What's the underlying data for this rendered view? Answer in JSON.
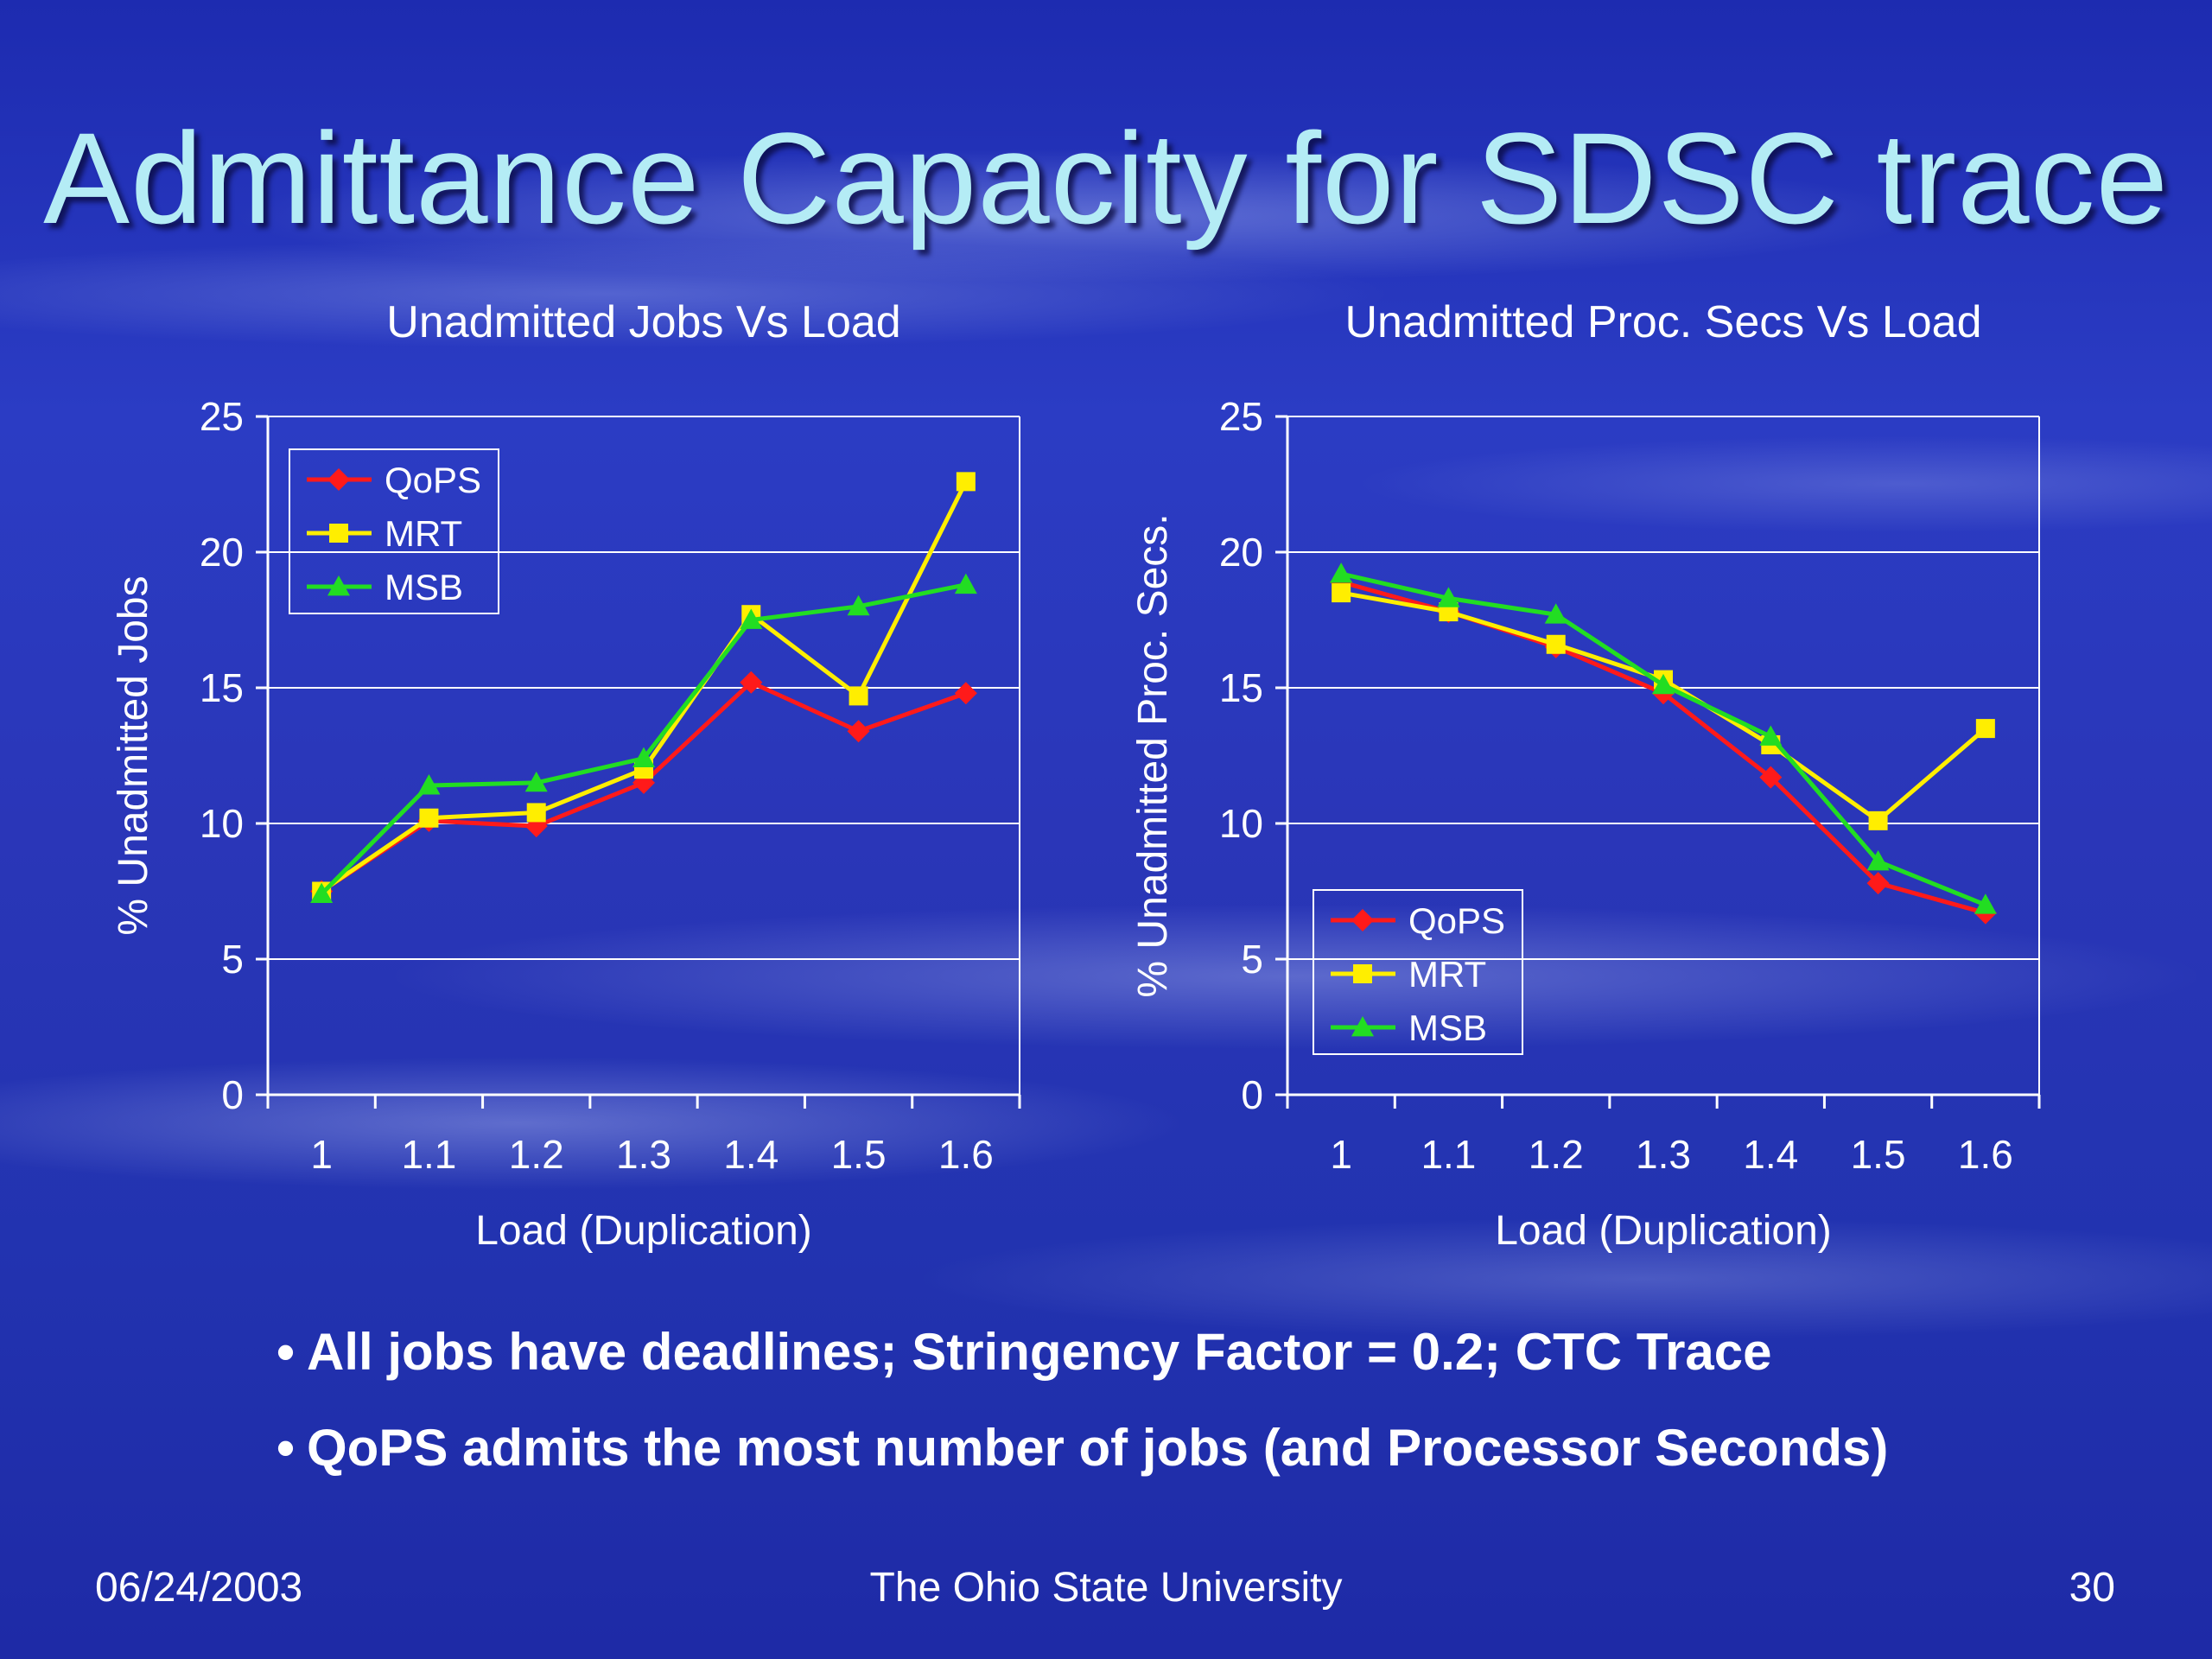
{
  "slide": {
    "title": "Admittance Capacity for SDSC trace",
    "bullets": [
      "All jobs have deadlines; Stringency Factor = 0.2; CTC Trace",
      "QoPS admits the most number of jobs (and Processor Seconds)"
    ],
    "bullet_symbol": "•",
    "footer": {
      "date": "06/24/2003",
      "center": "The Ohio State University",
      "page": "30"
    }
  },
  "colors": {
    "QoPS": "#ff1a1a",
    "MRT": "#ffee00",
    "MSB": "#22dd22",
    "text": "#ffffff",
    "title": "#b4ecf5"
  },
  "chart_data": [
    {
      "type": "line",
      "title": "Unadmitted Jobs Vs Load",
      "xlabel": "Load (Duplication)",
      "ylabel": "% Unadmitted Jobs",
      "categories": [
        "1",
        "1.1",
        "1.2",
        "1.3",
        "1.4",
        "1.5",
        "1.6"
      ],
      "ylim": [
        0,
        25
      ],
      "yticks": [
        "0",
        "5",
        "10",
        "15",
        "20",
        "25"
      ],
      "grid": true,
      "legend": "top-left",
      "series": [
        {
          "name": "QoPS",
          "marker": "diamond",
          "values": [
            7.5,
            10.1,
            9.9,
            11.5,
            15.2,
            13.4,
            14.8
          ]
        },
        {
          "name": "MRT",
          "marker": "square",
          "values": [
            7.5,
            10.2,
            10.4,
            12.0,
            17.7,
            14.7,
            22.6
          ]
        },
        {
          "name": "MSB",
          "marker": "triangle",
          "values": [
            7.4,
            11.4,
            11.5,
            12.4,
            17.5,
            18.0,
            18.8
          ]
        }
      ]
    },
    {
      "type": "line",
      "title": "Unadmitted Proc. Secs Vs Load",
      "xlabel": "Load (Duplication)",
      "ylabel": "% Unadmitted Proc. Secs.",
      "categories": [
        "1",
        "1.1",
        "1.2",
        "1.3",
        "1.4",
        "1.5",
        "1.6"
      ],
      "ylim": [
        0,
        25
      ],
      "yticks": [
        "0",
        "5",
        "10",
        "15",
        "20",
        "25"
      ],
      "grid": true,
      "legend": "bottom-left",
      "series": [
        {
          "name": "QoPS",
          "marker": "diamond",
          "values": [
            18.9,
            17.8,
            16.5,
            14.8,
            11.7,
            7.8,
            6.7
          ]
        },
        {
          "name": "MRT",
          "marker": "square",
          "values": [
            18.5,
            17.8,
            16.6,
            15.3,
            12.9,
            10.1,
            13.5
          ]
        },
        {
          "name": "MSB",
          "marker": "triangle",
          "values": [
            19.2,
            18.3,
            17.7,
            15.1,
            13.2,
            8.6,
            7.0
          ]
        }
      ]
    }
  ]
}
